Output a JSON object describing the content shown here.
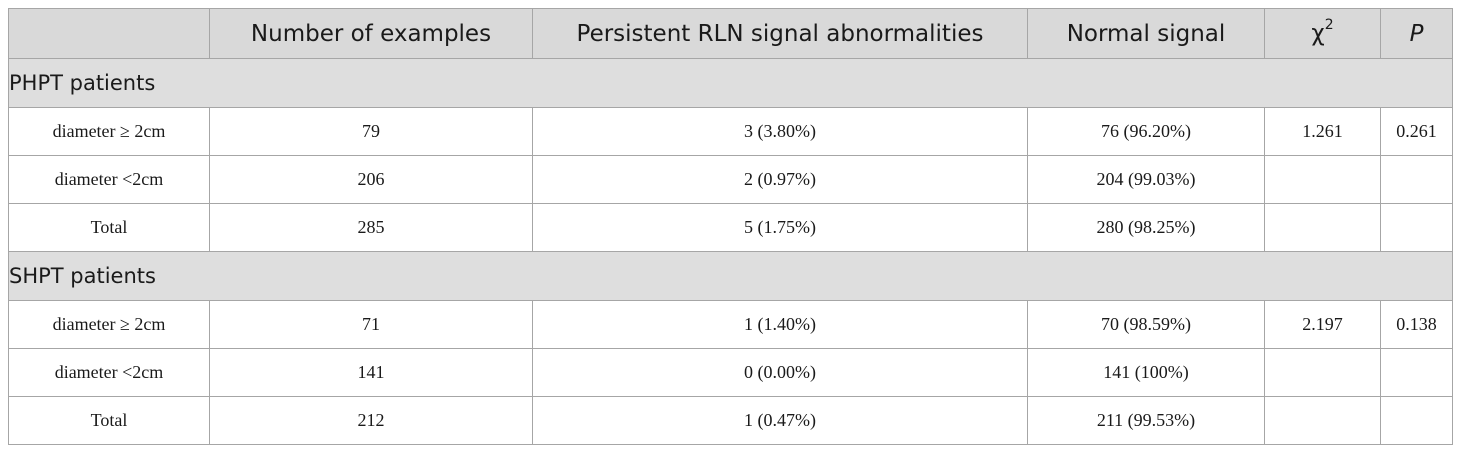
{
  "table": {
    "headers": [
      "",
      "Number of examples",
      "Persistent RLN signal abnormalities",
      "Normal signal",
      "χ",
      "P"
    ],
    "chi_sup": "2",
    "sections": [
      {
        "title": "PHPT patients",
        "rows": [
          [
            "diameter ≥ 2cm",
            "79",
            "3 (3.80%)",
            "76 (96.20%)",
            "1.261",
            "0.261"
          ],
          [
            "diameter <2cm",
            "206",
            "2 (0.97%)",
            "204 (99.03%)",
            "",
            ""
          ],
          [
            "Total",
            "285",
            "5 (1.75%)",
            "280 (98.25%)",
            "",
            ""
          ]
        ]
      },
      {
        "title": "SHPT patients",
        "rows": [
          [
            "diameter ≥ 2cm",
            "71",
            "1 (1.40%)",
            "70 (98.59%)",
            "2.197",
            "0.138"
          ],
          [
            "diameter <2cm",
            "141",
            "0 (0.00%)",
            "141 (100%)",
            "",
            ""
          ],
          [
            "Total",
            "212",
            "1 (0.47%)",
            "211 (99.53%)",
            "",
            ""
          ]
        ]
      }
    ]
  }
}
